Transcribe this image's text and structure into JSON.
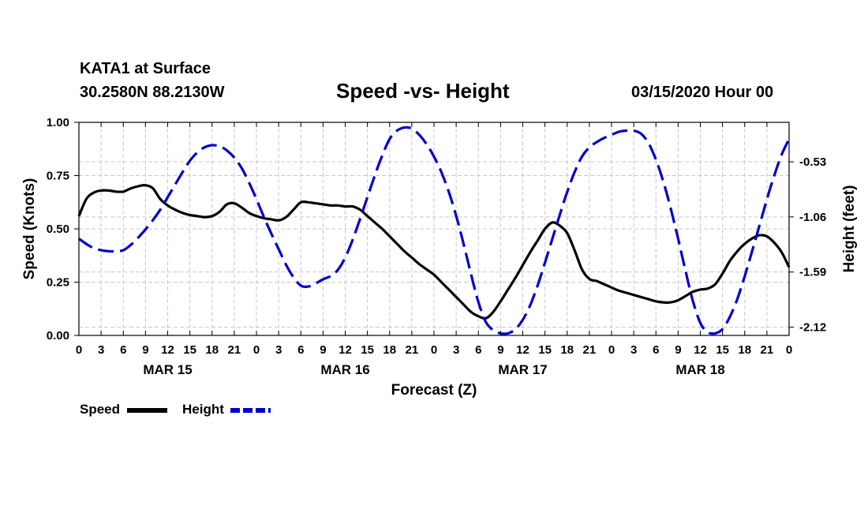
{
  "header": {
    "station": "KATA1 at Surface",
    "coords": "30.2580N 88.2130W",
    "title": "Speed -vs- Height",
    "datetime": "03/15/2020 Hour 00"
  },
  "legend": {
    "speed_label": "Speed",
    "height_label": "Height"
  },
  "chart_data": {
    "type": "line",
    "title": "Speed -vs- Height",
    "xlabel": "Forecast (Z)",
    "ylabel_left": "Speed (Knots)",
    "ylabel_right": "Height (feet)",
    "x_unit": "hours from 03/15/2020 00Z",
    "xlim": [
      0,
      96
    ],
    "ylim_left": [
      0,
      1.0
    ],
    "ylim_right": [
      -2.2,
      -0.15
    ],
    "y_ticks_left": [
      "0.00",
      "0.25",
      "0.50",
      "0.75",
      "1.00"
    ],
    "y_ticks_right": [
      "-0.53",
      "-1.06",
      "-1.59",
      "-2.12"
    ],
    "x_tick_labels": [
      "0",
      "3",
      "6",
      "9",
      "12",
      "15",
      "18",
      "21",
      "0",
      "3",
      "6",
      "9",
      "12",
      "15",
      "18",
      "21",
      "0",
      "3",
      "6",
      "9",
      "12",
      "15",
      "18",
      "21",
      "0",
      "3",
      "6",
      "9",
      "12",
      "15",
      "18",
      "21",
      "0"
    ],
    "day_labels": [
      "MAR 15",
      "MAR 16",
      "MAR 17",
      "MAR 18"
    ],
    "grid": true,
    "series": [
      {
        "name": "Speed",
        "axis": "left",
        "color": "#000000",
        "style": "solid",
        "x": [
          0,
          1,
          2,
          3,
          4,
          5,
          6,
          7,
          8,
          9,
          10,
          11,
          12,
          13,
          14,
          15,
          16,
          17,
          18,
          19,
          20,
          21,
          22,
          23,
          24,
          25,
          26,
          27,
          28,
          29,
          30,
          31,
          32,
          33,
          34,
          35,
          36,
          37,
          38,
          39,
          40,
          41,
          42,
          43,
          44,
          45,
          46,
          47,
          48,
          49,
          50,
          51,
          52,
          53,
          54,
          55,
          56,
          57,
          58,
          59,
          60,
          61,
          62,
          63,
          64,
          65,
          66,
          67,
          68,
          69,
          70,
          71,
          72,
          73,
          74,
          75,
          76,
          77,
          78,
          79,
          80,
          81,
          82,
          83,
          84,
          85,
          86,
          87,
          88,
          89,
          90,
          91,
          92,
          93,
          94,
          95,
          96
        ],
        "values": [
          0.56,
          0.64,
          0.67,
          0.68,
          0.68,
          0.675,
          0.675,
          0.69,
          0.7,
          0.705,
          0.69,
          0.64,
          0.61,
          0.59,
          0.575,
          0.565,
          0.56,
          0.555,
          0.56,
          0.58,
          0.615,
          0.62,
          0.6,
          0.575,
          0.56,
          0.55,
          0.545,
          0.54,
          0.555,
          0.59,
          0.625,
          0.625,
          0.62,
          0.615,
          0.61,
          0.61,
          0.605,
          0.605,
          0.59,
          0.56,
          0.53,
          0.5,
          0.465,
          0.43,
          0.395,
          0.365,
          0.335,
          0.31,
          0.285,
          0.25,
          0.215,
          0.18,
          0.145,
          0.11,
          0.09,
          0.08,
          0.11,
          0.16,
          0.215,
          0.27,
          0.33,
          0.39,
          0.445,
          0.5,
          0.53,
          0.515,
          0.48,
          0.4,
          0.31,
          0.265,
          0.255,
          0.24,
          0.225,
          0.21,
          0.2,
          0.19,
          0.18,
          0.17,
          0.16,
          0.155,
          0.155,
          0.165,
          0.185,
          0.205,
          0.215,
          0.22,
          0.24,
          0.29,
          0.35,
          0.395,
          0.43,
          0.455,
          0.47,
          0.465,
          0.435,
          0.39,
          0.32
        ]
      },
      {
        "name": "Height",
        "axis": "right",
        "color": "#0000cc",
        "style": "dashed",
        "x": [
          0,
          1,
          2,
          3,
          4,
          5,
          6,
          7,
          8,
          9,
          10,
          11,
          12,
          13,
          14,
          15,
          16,
          17,
          18,
          19,
          20,
          21,
          22,
          23,
          24,
          25,
          26,
          27,
          28,
          29,
          30,
          31,
          32,
          33,
          34,
          35,
          36,
          37,
          38,
          39,
          40,
          41,
          42,
          43,
          44,
          45,
          46,
          47,
          48,
          49,
          50,
          51,
          52,
          53,
          54,
          55,
          56,
          57,
          58,
          59,
          60,
          61,
          62,
          63,
          64,
          65,
          66,
          67,
          68,
          69,
          70,
          71,
          72,
          73,
          74,
          75,
          76,
          77,
          78,
          79,
          80,
          81,
          82,
          83,
          84,
          85,
          86,
          87,
          88,
          89,
          90,
          91,
          92,
          93,
          94,
          95,
          96
        ],
        "values": [
          -1.27,
          -1.32,
          -1.36,
          -1.38,
          -1.39,
          -1.39,
          -1.38,
          -1.33,
          -1.26,
          -1.18,
          -1.09,
          -0.99,
          -0.87,
          -0.75,
          -0.63,
          -0.52,
          -0.44,
          -0.39,
          -0.37,
          -0.38,
          -0.42,
          -0.49,
          -0.59,
          -0.73,
          -0.89,
          -1.06,
          -1.22,
          -1.37,
          -1.52,
          -1.64,
          -1.72,
          -1.73,
          -1.7,
          -1.66,
          -1.63,
          -1.57,
          -1.45,
          -1.28,
          -1.08,
          -0.87,
          -0.66,
          -0.47,
          -0.31,
          -0.23,
          -0.2,
          -0.21,
          -0.27,
          -0.36,
          -0.48,
          -0.63,
          -0.82,
          -1.05,
          -1.32,
          -1.61,
          -1.88,
          -2.07,
          -2.15,
          -2.18,
          -2.18,
          -2.14,
          -2.05,
          -1.91,
          -1.72,
          -1.5,
          -1.27,
          -1.04,
          -0.82,
          -0.63,
          -0.48,
          -0.39,
          -0.34,
          -0.3,
          -0.27,
          -0.24,
          -0.23,
          -0.23,
          -0.26,
          -0.35,
          -0.51,
          -0.72,
          -0.98,
          -1.27,
          -1.58,
          -1.87,
          -2.08,
          -2.17,
          -2.18,
          -2.14,
          -2.02,
          -1.85,
          -1.63,
          -1.39,
          -1.14,
          -0.89,
          -0.66,
          -0.46,
          -0.31
        ]
      }
    ]
  }
}
